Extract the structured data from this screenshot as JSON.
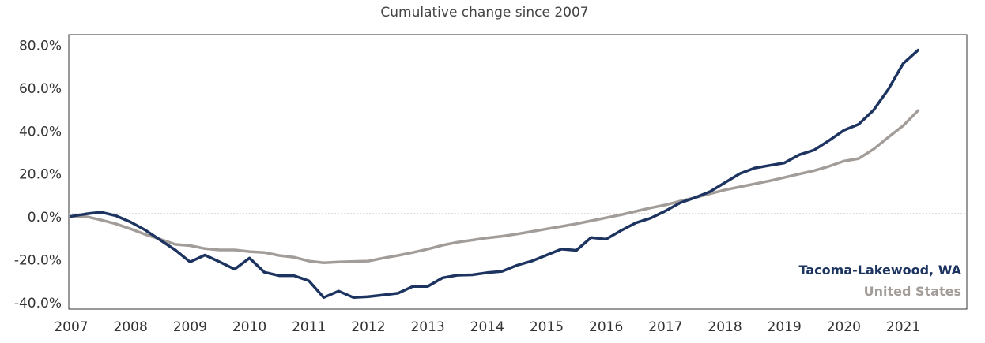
{
  "chart_data": {
    "type": "line",
    "title": "Cumulative change since 2007",
    "xlabel": "",
    "ylabel": "",
    "x_ticks": [
      "2007",
      "2008",
      "2009",
      "2010",
      "2011",
      "2012",
      "2013",
      "2014",
      "2015",
      "2016",
      "2017",
      "2018",
      "2019",
      "2020",
      "2021"
    ],
    "y_ticks": [
      "80.0%",
      "60.0%",
      "40.0%",
      "20.0%",
      "0.0%",
      "-20.0%",
      "-40.0%"
    ],
    "y_tick_values": [
      80,
      60,
      40,
      20,
      0,
      -20,
      -40
    ],
    "xlim": [
      2006.96,
      2022.07
    ],
    "ylim": [
      -43,
      85
    ],
    "zero_line": "dotted",
    "legend_placement": "bottom-right",
    "series": [
      {
        "name": "Tacoma-Lakewood, WA",
        "color": "#1d3461",
        "points": [
          [
            2007.0,
            0.3
          ],
          [
            2007.25,
            1.4
          ],
          [
            2007.5,
            2.2
          ],
          [
            2007.75,
            0.6
          ],
          [
            2008.0,
            -2.4
          ],
          [
            2008.25,
            -6.2
          ],
          [
            2008.5,
            -10.8
          ],
          [
            2008.75,
            -15.4
          ],
          [
            2009.0,
            -21.0
          ],
          [
            2009.25,
            -17.8
          ],
          [
            2009.5,
            -21.0
          ],
          [
            2009.75,
            -24.4
          ],
          [
            2010.0,
            -19.2
          ],
          [
            2010.25,
            -25.8
          ],
          [
            2010.5,
            -27.4
          ],
          [
            2010.75,
            -27.4
          ],
          [
            2011.0,
            -29.8
          ],
          [
            2011.25,
            -37.6
          ],
          [
            2011.5,
            -34.6
          ],
          [
            2011.75,
            -37.6
          ],
          [
            2012.0,
            -37.2
          ],
          [
            2012.25,
            -36.4
          ],
          [
            2012.5,
            -35.6
          ],
          [
            2012.75,
            -32.4
          ],
          [
            2013.0,
            -32.4
          ],
          [
            2013.25,
            -28.4
          ],
          [
            2013.5,
            -27.2
          ],
          [
            2013.75,
            -27.0
          ],
          [
            2014.0,
            -26.0
          ],
          [
            2014.25,
            -25.4
          ],
          [
            2014.5,
            -22.6
          ],
          [
            2014.75,
            -20.6
          ],
          [
            2015.0,
            -17.8
          ],
          [
            2015.25,
            -15.0
          ],
          [
            2015.5,
            -15.6
          ],
          [
            2015.75,
            -9.6
          ],
          [
            2016.0,
            -10.4
          ],
          [
            2016.25,
            -6.4
          ],
          [
            2016.5,
            -2.8
          ],
          [
            2016.75,
            -0.6
          ],
          [
            2017.0,
            2.8
          ],
          [
            2017.25,
            6.6
          ],
          [
            2017.5,
            9.0
          ],
          [
            2017.75,
            11.8
          ],
          [
            2018.0,
            16.0
          ],
          [
            2018.25,
            20.2
          ],
          [
            2018.5,
            22.8
          ],
          [
            2018.75,
            24.0
          ],
          [
            2019.0,
            25.2
          ],
          [
            2019.25,
            29.0
          ],
          [
            2019.5,
            31.2
          ],
          [
            2019.75,
            35.6
          ],
          [
            2020.0,
            40.4
          ],
          [
            2020.25,
            43.2
          ],
          [
            2020.5,
            49.8
          ],
          [
            2020.75,
            59.6
          ],
          [
            2021.0,
            71.6
          ],
          [
            2021.25,
            77.8
          ]
        ]
      },
      {
        "name": "United States",
        "color": "#a39d9a",
        "points": [
          [
            2007.0,
            0.3
          ],
          [
            2007.25,
            0.2
          ],
          [
            2007.5,
            -1.4
          ],
          [
            2007.75,
            -3.2
          ],
          [
            2008.0,
            -5.6
          ],
          [
            2008.25,
            -8.2
          ],
          [
            2008.5,
            -10.4
          ],
          [
            2008.75,
            -12.8
          ],
          [
            2009.0,
            -13.4
          ],
          [
            2009.25,
            -14.8
          ],
          [
            2009.5,
            -15.4
          ],
          [
            2009.75,
            -15.4
          ],
          [
            2010.0,
            -16.2
          ],
          [
            2010.25,
            -16.6
          ],
          [
            2010.5,
            -18.0
          ],
          [
            2010.75,
            -18.8
          ],
          [
            2011.0,
            -20.6
          ],
          [
            2011.25,
            -21.4
          ],
          [
            2011.5,
            -21.0
          ],
          [
            2011.75,
            -20.8
          ],
          [
            2012.0,
            -20.6
          ],
          [
            2012.25,
            -19.2
          ],
          [
            2012.5,
            -18.0
          ],
          [
            2012.75,
            -16.6
          ],
          [
            2013.0,
            -15.0
          ],
          [
            2013.25,
            -13.2
          ],
          [
            2013.5,
            -11.8
          ],
          [
            2013.75,
            -10.8
          ],
          [
            2014.0,
            -9.8
          ],
          [
            2014.25,
            -9.0
          ],
          [
            2014.5,
            -8.0
          ],
          [
            2014.75,
            -6.8
          ],
          [
            2015.0,
            -5.6
          ],
          [
            2015.25,
            -4.4
          ],
          [
            2015.5,
            -3.2
          ],
          [
            2015.75,
            -1.8
          ],
          [
            2016.0,
            -0.4
          ],
          [
            2016.25,
            1.0
          ],
          [
            2016.5,
            2.6
          ],
          [
            2016.75,
            4.2
          ],
          [
            2017.0,
            5.6
          ],
          [
            2017.25,
            7.4
          ],
          [
            2017.5,
            9.0
          ],
          [
            2017.75,
            10.8
          ],
          [
            2018.0,
            12.6
          ],
          [
            2018.25,
            14.0
          ],
          [
            2018.5,
            15.4
          ],
          [
            2018.75,
            16.8
          ],
          [
            2019.0,
            18.4
          ],
          [
            2019.25,
            20.0
          ],
          [
            2019.5,
            21.6
          ],
          [
            2019.75,
            23.6
          ],
          [
            2020.0,
            26.0
          ],
          [
            2020.25,
            27.2
          ],
          [
            2020.5,
            31.6
          ],
          [
            2020.75,
            37.2
          ],
          [
            2021.0,
            42.6
          ],
          [
            2021.25,
            49.6
          ]
        ]
      }
    ]
  }
}
